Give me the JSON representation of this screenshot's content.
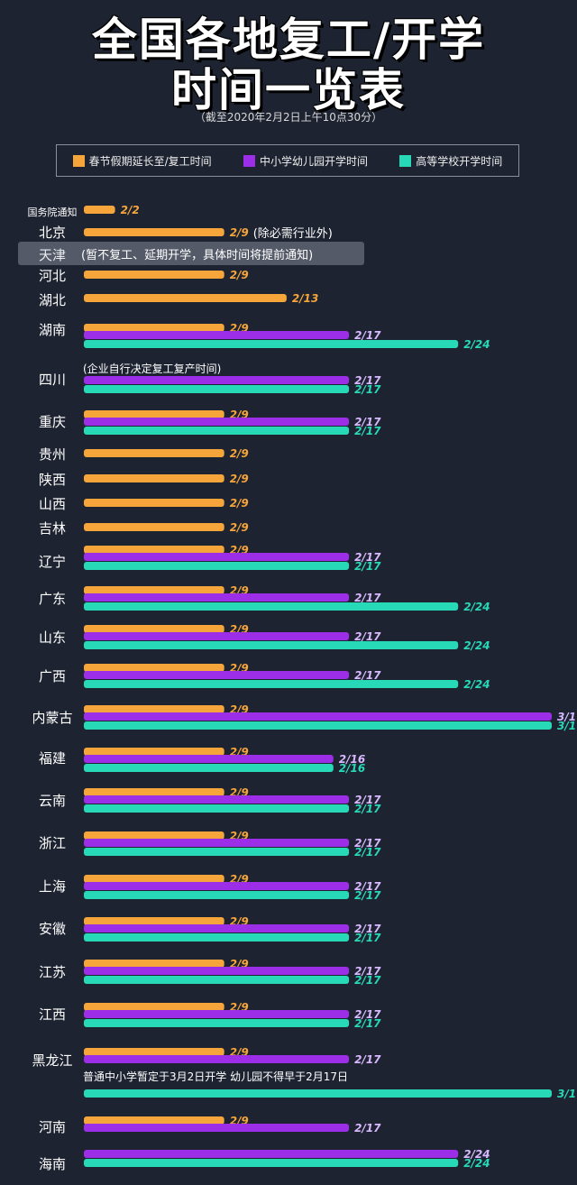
{
  "title_line1": "全国各地复工/开学",
  "title_line2": "时间一览表",
  "subtitle": "（截至2020年2月2日上午10点30分）",
  "colors": {
    "work": "#f5a53a",
    "school": "#9b2ee6",
    "college": "#28d9b8",
    "bg": "#1d2330"
  },
  "chart_data": {
    "type": "bar",
    "orientation": "horizontal",
    "series": [
      {
        "name": "春节假期延长至/复工时间",
        "color": "#f5a53a"
      },
      {
        "name": "中小学幼儿园开学时间",
        "color": "#9b2ee6"
      },
      {
        "name": "高等学校开学时间",
        "color": "#28d9b8"
      }
    ],
    "rows": [
      {
        "region": "国务院通知",
        "work": "2/2"
      },
      {
        "region": "北京",
        "work": "2/9",
        "note": "(除必需行业外)"
      },
      {
        "region": "天津",
        "note": "(暂不复工、延期开学，具体时间将提前通知)"
      },
      {
        "region": "河北",
        "work": "2/9"
      },
      {
        "region": "湖北",
        "work": "2/13"
      },
      {
        "region": "湖南",
        "work": "2/9",
        "school": "2/17",
        "college": "2/24"
      },
      {
        "region": "四川",
        "note": "(企业自行决定复工复产时间)",
        "school": "2/17",
        "college": "2/17"
      },
      {
        "region": "重庆",
        "work": "2/9",
        "school": "2/17",
        "college": "2/17"
      },
      {
        "region": "贵州",
        "work": "2/9"
      },
      {
        "region": "陕西",
        "work": "2/9"
      },
      {
        "region": "山西",
        "work": "2/9"
      },
      {
        "region": "吉林",
        "work": "2/9"
      },
      {
        "region": "辽宁",
        "work": "2/9",
        "school": "2/17",
        "college": "2/17"
      },
      {
        "region": "广东",
        "work": "2/9",
        "school": "2/17",
        "college": "2/24"
      },
      {
        "region": "山东",
        "work": "2/9",
        "school": "2/17",
        "college": "2/24"
      },
      {
        "region": "广西",
        "work": "2/9",
        "school": "2/17",
        "college": "2/24"
      },
      {
        "region": "内蒙古",
        "work": "2/9",
        "school": "3/1",
        "college": "3/1"
      },
      {
        "region": "福建",
        "work": "2/9",
        "school": "2/16",
        "college": "2/16"
      },
      {
        "region": "云南",
        "work": "2/9",
        "school": "2/17",
        "college": "2/17"
      },
      {
        "region": "浙江",
        "work": "2/9",
        "school": "2/17",
        "college": "2/17"
      },
      {
        "region": "上海",
        "work": "2/9",
        "school": "2/17",
        "college": "2/17"
      },
      {
        "region": "安徽",
        "work": "2/9",
        "school": "2/17",
        "college": "2/17"
      },
      {
        "region": "江苏",
        "work": "2/9",
        "school": "2/17",
        "college": "2/17"
      },
      {
        "region": "江西",
        "work": "2/9",
        "school": "2/17",
        "college": "2/17"
      },
      {
        "region": "黑龙江",
        "work": "2/9",
        "school": "2/17",
        "note": "普通中小学暂定于3月2日开学 幼儿园不得早于2月17日",
        "college": "3/1"
      },
      {
        "region": "河南",
        "work": "2/9",
        "school": "2/17"
      },
      {
        "region": "海南",
        "school": "2/24",
        "college": "2/24"
      }
    ]
  }
}
